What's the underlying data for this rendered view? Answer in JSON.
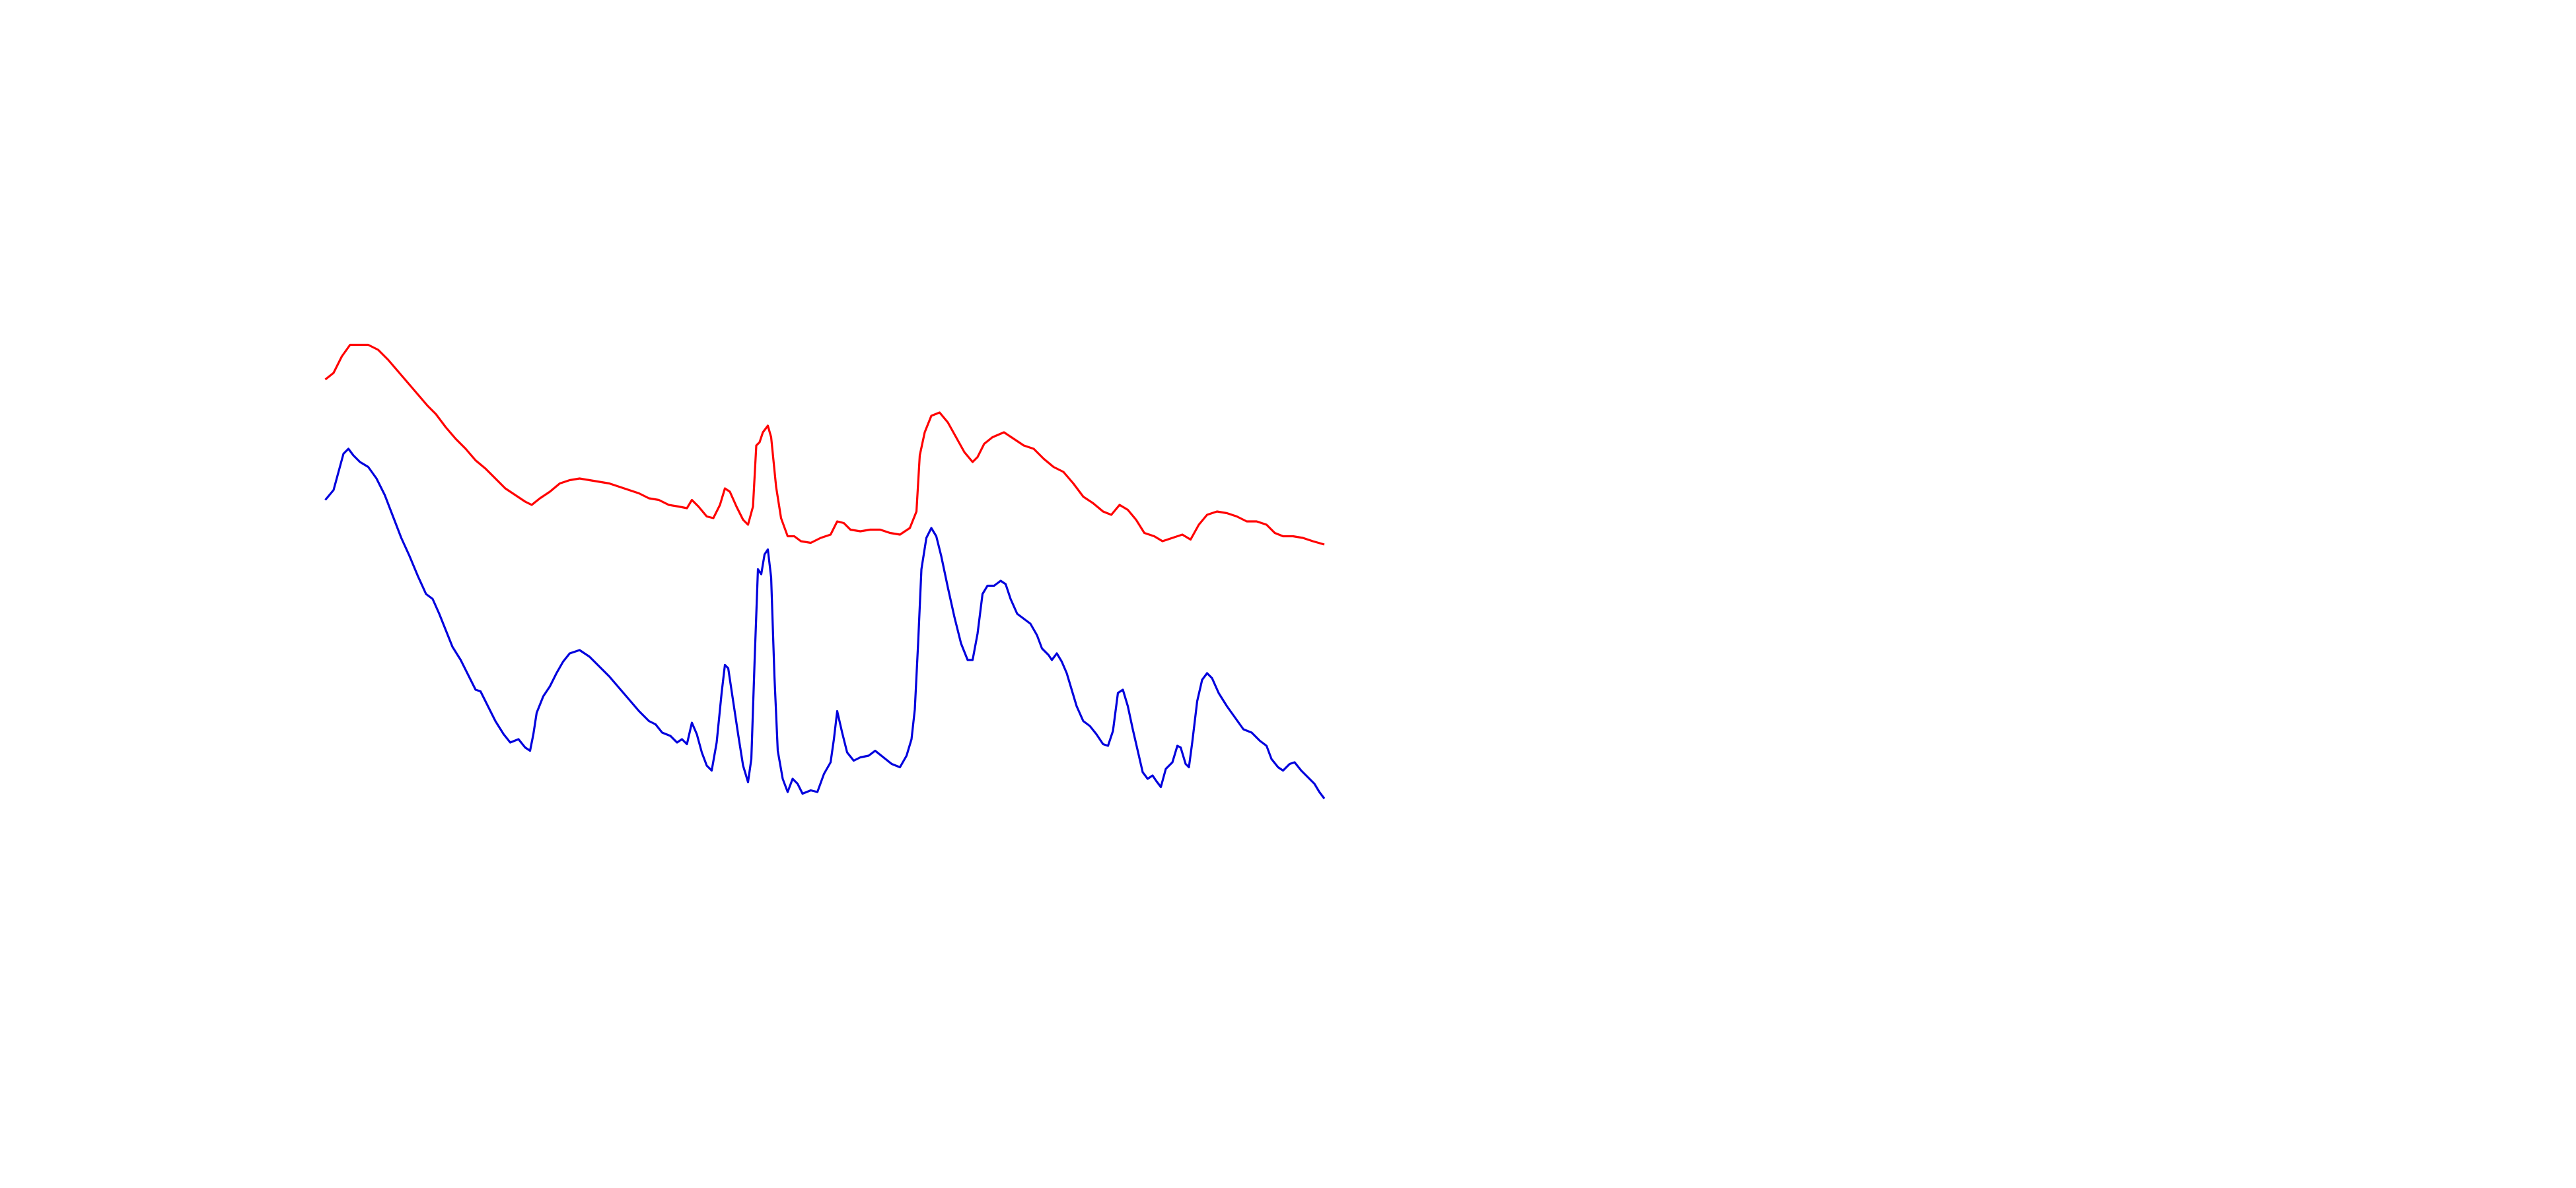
{
  "chart_data": {
    "type": "line",
    "xlim": [
      0,
      1560
    ],
    "ylim": [
      0,
      720
    ],
    "series": [
      {
        "color": "#ff0000",
        "x": [
          197,
          202,
          207,
          212,
          218,
          223,
          229,
          235,
          241,
          247,
          253,
          259,
          264,
          270,
          276,
          282,
          288,
          294,
          300,
          306,
          312,
          318,
          322,
          327,
          333,
          339,
          345,
          351,
          357,
          363,
          369,
          375,
          381,
          387,
          393,
          399,
          405,
          411,
          416,
          419,
          423,
          428,
          432,
          436,
          439,
          442,
          446,
          450,
          453,
          456,
          458,
          460,
          462,
          465,
          467,
          470,
          473,
          477,
          481,
          485,
          491,
          497,
          503,
          507,
          511,
          515,
          521,
          527,
          533,
          539,
          545,
          551,
          555,
          557,
          560,
          564,
          569,
          574,
          579,
          584,
          589,
          592,
          596,
          601,
          608,
          614,
          620,
          626,
          632,
          638,
          644,
          650,
          656,
          662,
          668,
          673,
          678,
          683,
          688,
          693,
          699,
          704,
          710,
          716,
          721,
          726,
          731,
          737,
          743,
          749,
          755,
          761,
          767,
          772,
          777,
          783,
          789,
          795,
          802
        ],
        "values": [
          490,
          494,
          504,
          511,
          511,
          511,
          508,
          502,
          495,
          488,
          481,
          474,
          469,
          461,
          454,
          448,
          441,
          436,
          430,
          424,
          420,
          416,
          414,
          418,
          422,
          427,
          429,
          430,
          429,
          428,
          427,
          425,
          423,
          421,
          418,
          417,
          414,
          413,
          412,
          417,
          413,
          407,
          406,
          414,
          424,
          422,
          413,
          405,
          402,
          413,
          450,
          452,
          458,
          462,
          455,
          425,
          406,
          395,
          395,
          392,
          391,
          394,
          396,
          404,
          403,
          399,
          398,
          399,
          399,
          397,
          396,
          400,
          410,
          444,
          458,
          468,
          470,
          464,
          455,
          446,
          440,
          443,
          451,
          455,
          458,
          454,
          450,
          448,
          442,
          437,
          434,
          427,
          419,
          415,
          410,
          408,
          414,
          411,
          405,
          397,
          395,
          392,
          394,
          396,
          393,
          402,
          408,
          410,
          409,
          407,
          404,
          404,
          402,
          397,
          395,
          395,
          394,
          392,
          390
        ]
      },
      {
        "color": "#0000dd",
        "x": [
          197,
          202,
          205,
          208,
          211,
          214,
          218,
          223,
          228,
          233,
          238,
          243,
          248,
          253,
          258,
          262,
          266,
          270,
          274,
          279,
          284,
          288,
          291,
          295,
          300,
          305,
          309,
          314,
          318,
          321,
          323,
          325,
          329,
          333,
          337,
          341,
          345,
          351,
          357,
          363,
          369,
          375,
          381,
          387,
          393,
          397,
          401,
          406,
          410,
          413,
          416,
          419,
          422,
          425,
          428,
          431,
          434,
          437,
          439,
          441,
          444,
          447,
          450,
          453,
          455,
          457,
          459,
          461,
          463,
          465,
          467,
          469,
          471,
          474,
          477,
          480,
          483,
          486,
          491,
          495,
          499,
          503,
          505,
          507,
          510,
          513,
          517,
          521,
          526,
          530,
          535,
          540,
          545,
          549,
          552,
          554,
          556,
          558,
          561,
          564,
          567,
          570,
          574,
          578,
          582,
          586,
          589,
          592,
          595,
          598,
          602,
          606,
          609,
          612,
          616,
          620,
          624,
          628,
          631,
          635,
          637,
          640,
          643,
          646,
          649,
          652,
          656,
          660,
          664,
          668,
          671,
          674,
          677,
          680,
          683,
          686,
          689,
          692,
          695,
          698,
          700,
          703,
          706,
          710,
          713,
          715,
          718,
          720,
          722,
          725,
          728,
          731,
          734,
          738,
          743,
          748,
          753,
          758,
          763,
          767,
          770,
          774,
          777,
          781,
          784,
          788,
          792,
          796,
          799,
          802
        ],
        "values": [
          417,
          423,
          434,
          445,
          448,
          444,
          440,
          437,
          430,
          420,
          407,
          394,
          383,
          371,
          360,
          357,
          348,
          338,
          328,
          320,
          310,
          302,
          301,
          293,
          283,
          275,
          270,
          272,
          267,
          265,
          275,
          288,
          298,
          304,
          312,
          319,
          324,
          326,
          322,
          316,
          310,
          303,
          296,
          289,
          283,
          281,
          276,
          274,
          270,
          272,
          269,
          282,
          275,
          264,
          256,
          253,
          270,
          300,
          317,
          315,
          295,
          275,
          256,
          246,
          260,
          320,
          375,
          372,
          384,
          387,
          370,
          310,
          265,
          248,
          240,
          248,
          245,
          239,
          241,
          240,
          251,
          258,
          272,
          289,
          276,
          264,
          259,
          261,
          262,
          265,
          261,
          257,
          255,
          262,
          272,
          290,
          330,
          375,
          394,
          400,
          395,
          383,
          364,
          346,
          330,
          320,
          320,
          336,
          360,
          365,
          365,
          368,
          366,
          357,
          348,
          345,
          342,
          335,
          327,
          323,
          320,
          324,
          319,
          312,
          302,
          292,
          283,
          280,
          275,
          269,
          268,
          277,
          300,
          302,
          292,
          278,
          265,
          252,
          248,
          250,
          247,
          243,
          254,
          258,
          268,
          267,
          257,
          255,
          270,
          295,
          308,
          312,
          309,
          300,
          292,
          285,
          278,
          276,
          271,
          268,
          260,
          255,
          253,
          257,
          258,
          253,
          249,
          245,
          240,
          236
        ]
      }
    ]
  }
}
